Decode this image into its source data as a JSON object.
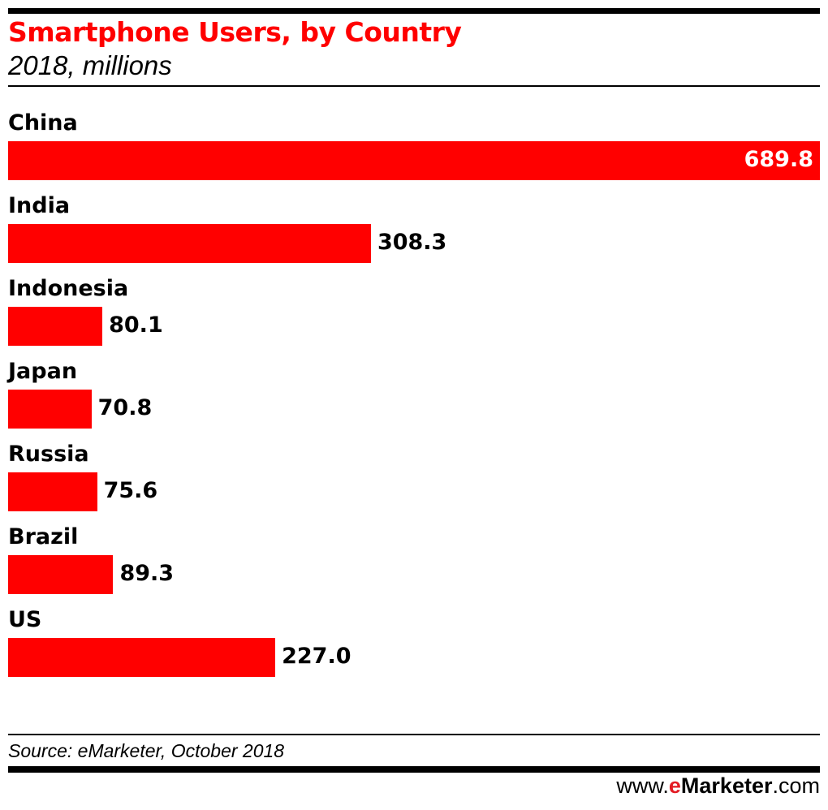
{
  "chart_data": {
    "type": "bar",
    "orientation": "horizontal",
    "title": "Smartphone Users, by Country",
    "subtitle": "2018, millions",
    "categories": [
      "China",
      "India",
      "Indonesia",
      "Japan",
      "Russia",
      "Brazil",
      "US"
    ],
    "values": [
      689.8,
      308.3,
      80.1,
      70.8,
      75.6,
      89.3,
      227.0
    ],
    "value_labels": [
      "689.8",
      "308.3",
      "80.1",
      "70.8",
      "75.6",
      "89.3",
      "227.0"
    ],
    "xlim": [
      0,
      689.8
    ],
    "grid": false,
    "bar_color": "#ff0000",
    "title_color": "#ff0000"
  },
  "footer": {
    "source": "Source: eMarketer, October 2018",
    "logo": {
      "prefix": "www.",
      "e": "e",
      "brand": "Marketer",
      "suffix": ".com"
    }
  }
}
